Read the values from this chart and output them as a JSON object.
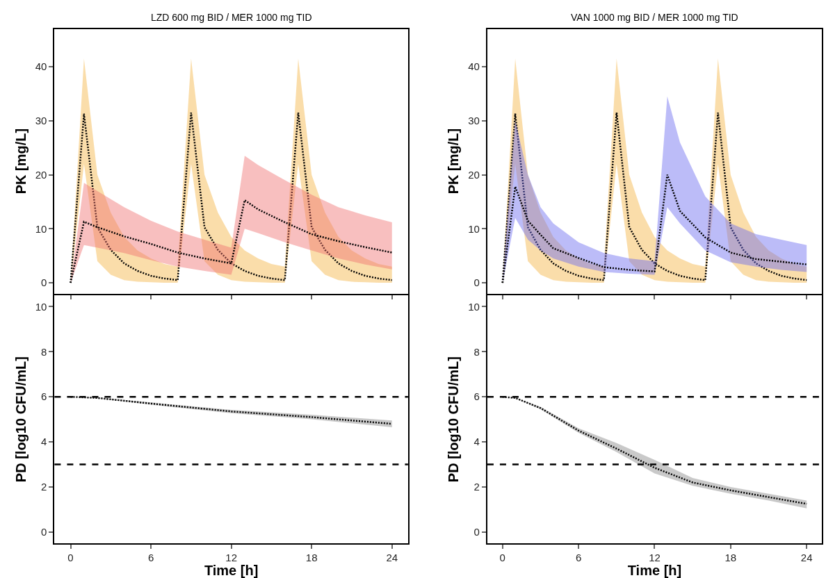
{
  "chart_data": [
    {
      "type": "line",
      "title": "LZD 600 mg BID / MER 1000 mg TID",
      "ylabel": "PK [mg/L]",
      "xlim": [
        -1.2,
        25.2
      ],
      "xticks": [
        0,
        6,
        12,
        18,
        24
      ],
      "ylim": [
        -2,
        47
      ],
      "yticks": [
        0,
        10,
        20,
        30,
        40
      ],
      "tick_labels": "y",
      "line_style": "dotted",
      "marker": "none",
      "grid": false,
      "series": [
        {
          "color": "#000000",
          "x": [
            0,
            1,
            2,
            3,
            4,
            5,
            6,
            7,
            8,
            9,
            10,
            11,
            12,
            13,
            14,
            15,
            16,
            17,
            18,
            19,
            20,
            21,
            22,
            23,
            24
          ],
          "values": [
            0,
            31.3,
            10.3,
            6.1,
            3.6,
            2.2,
            1.3,
            0.8,
            0.5,
            31.5,
            10.3,
            6.1,
            3.6,
            2.2,
            1.3,
            0.8,
            0.5,
            31.5,
            10.3,
            6.1,
            3.6,
            2.2,
            1.3,
            0.8,
            0.5
          ],
          "lower": [
            0,
            22,
            4,
            1.5,
            0.5,
            0.2,
            0.1,
            0,
            0,
            22,
            4,
            1.5,
            0.5,
            0.2,
            0.1,
            0,
            0,
            22,
            4,
            1.5,
            0.5,
            0.2,
            0.1,
            0,
            0
          ],
          "upper": [
            0,
            41.5,
            20,
            13,
            8.5,
            6,
            4.5,
            3.5,
            3,
            41.5,
            20,
            13,
            8.5,
            6,
            4.5,
            3.5,
            3,
            41.5,
            20,
            13,
            8.5,
            6,
            4.5,
            3.5,
            3
          ]
        },
        {
          "color": "#000000",
          "x": [
            0,
            1,
            2,
            4,
            6,
            8,
            10,
            12,
            13,
            14,
            16,
            18,
            20,
            22,
            24
          ],
          "values": [
            0,
            11.3,
            10.3,
            8.6,
            7.2,
            5.6,
            4.5,
            3.6,
            15.3,
            13.6,
            11.2,
            9,
            7.7,
            6.6,
            5.6
          ],
          "lower": [
            0,
            7,
            6.5,
            5.5,
            4.2,
            3,
            2.2,
            1.5,
            10,
            9.2,
            7.5,
            6,
            4.5,
            3.4,
            2.5
          ],
          "upper": [
            0,
            18.5,
            17,
            14,
            11.5,
            9.5,
            8,
            6.5,
            23.5,
            21.8,
            19,
            16.3,
            14,
            12.5,
            11.2
          ]
        }
      ]
    },
    {
      "type": "line",
      "title": "VAN 1000 mg BID / MER 1000 mg TID",
      "ylabel": "PK [mg/L]",
      "xlim": [
        -1.2,
        25.2
      ],
      "xticks": [
        0,
        6,
        12,
        18,
        24
      ],
      "ylim": [
        -2,
        47
      ],
      "yticks": [
        0,
        10,
        20,
        30,
        40
      ],
      "tick_labels": "y",
      "line_style": "dotted",
      "marker": "none",
      "grid": false,
      "series": [
        {
          "color": "#000000",
          "x": [
            0,
            1,
            2,
            3,
            4,
            5,
            6,
            7,
            8,
            9,
            10,
            11,
            12,
            13,
            14,
            15,
            16,
            17,
            18,
            19,
            20,
            21,
            22,
            23,
            24
          ],
          "values": [
            0,
            31.3,
            10.3,
            6.1,
            3.6,
            2.2,
            1.3,
            0.8,
            0.5,
            31.5,
            10.3,
            6.1,
            3.6,
            2.2,
            1.3,
            0.8,
            0.5,
            31.5,
            10.3,
            6.1,
            3.6,
            2.2,
            1.3,
            0.8,
            0.5
          ],
          "lower": [
            0,
            22,
            4,
            1.5,
            0.5,
            0.2,
            0.1,
            0,
            0,
            22,
            4,
            1.5,
            0.5,
            0.2,
            0.1,
            0,
            0,
            22,
            4,
            1.5,
            0.5,
            0.2,
            0.1,
            0,
            0
          ],
          "upper": [
            0,
            41.5,
            20,
            13,
            8.5,
            6,
            4.5,
            3.5,
            3,
            41.5,
            20,
            13,
            8.5,
            6,
            4.5,
            3.5,
            3,
            41.5,
            20,
            13,
            8.5,
            6,
            4.5,
            3.5,
            3
          ]
        },
        {
          "color": "#000000",
          "x": [
            0,
            1,
            2,
            3,
            4,
            6,
            8,
            10,
            12,
            13,
            14,
            16,
            18,
            20,
            22,
            24
          ],
          "values": [
            0,
            17.8,
            11.5,
            8.9,
            6.4,
            4.6,
            2.9,
            2.4,
            2.1,
            20,
            13.3,
            8.4,
            5.6,
            4.4,
            3.9,
            3.4
          ],
          "lower": [
            0,
            12,
            8,
            6,
            4.5,
            3,
            2,
            1.7,
            1.5,
            14,
            11,
            6,
            3.8,
            3,
            2.4,
            2
          ],
          "upper": [
            0,
            30,
            20,
            14,
            11,
            7.5,
            5.5,
            4.5,
            4,
            34.5,
            26,
            16,
            11,
            9,
            8,
            7
          ]
        }
      ]
    },
    {
      "type": "line",
      "xlabel": "Time [h]",
      "ylabel": "PD [log10 CFU/mL]",
      "xlim": [
        -1.2,
        25.2
      ],
      "xticks": [
        0,
        6,
        12,
        18,
        24
      ],
      "ylim": [
        -0.5,
        10.5
      ],
      "yticks": [
        0,
        2,
        4,
        6,
        8,
        10
      ],
      "line_style": "dotted",
      "marker": "none",
      "grid": false,
      "ref_lines": [
        {
          "axis": "y",
          "value": 6,
          "color": "#000000",
          "line_style": "dashed"
        },
        {
          "axis": "y",
          "value": 3,
          "color": "#000000",
          "line_style": "dashed"
        }
      ],
      "series": [
        {
          "color": "#000000",
          "x": [
            0,
            2,
            6,
            12,
            18,
            24
          ],
          "values": [
            6,
            5.95,
            5.7,
            5.35,
            5.1,
            4.8
          ],
          "lower": [
            6,
            5.93,
            5.65,
            5.27,
            5,
            4.65
          ],
          "upper": [
            6,
            5.97,
            5.75,
            5.42,
            5.2,
            4.95
          ]
        }
      ]
    },
    {
      "type": "line",
      "xlabel": "Time [h]",
      "ylabel": "PD [log10 CFU/mL]",
      "xlim": [
        -1.2,
        25.2
      ],
      "xticks": [
        0,
        6,
        12,
        18,
        24
      ],
      "ylim": [
        -0.5,
        10.5
      ],
      "yticks": [
        0,
        2,
        4,
        6,
        8,
        10
      ],
      "line_style": "dotted",
      "marker": "none",
      "grid": false,
      "ref_lines": [
        {
          "axis": "y",
          "value": 6,
          "color": "#000000",
          "line_style": "dashed"
        },
        {
          "axis": "y",
          "value": 3,
          "color": "#000000",
          "line_style": "dashed"
        }
      ],
      "series": [
        {
          "color": "#000000",
          "x": [
            0,
            1,
            3,
            6,
            9,
            12,
            15,
            18,
            21,
            24
          ],
          "values": [
            6,
            5.95,
            5.5,
            4.5,
            3.7,
            2.85,
            2.2,
            1.85,
            1.55,
            1.25
          ],
          "lower": [
            6,
            5.93,
            5.45,
            4.4,
            3.55,
            2.6,
            2.05,
            1.7,
            1.4,
            1.05
          ],
          "upper": [
            6,
            5.97,
            5.55,
            4.6,
            3.95,
            3.2,
            2.4,
            2,
            1.7,
            1.4
          ]
        }
      ]
    }
  ]
}
